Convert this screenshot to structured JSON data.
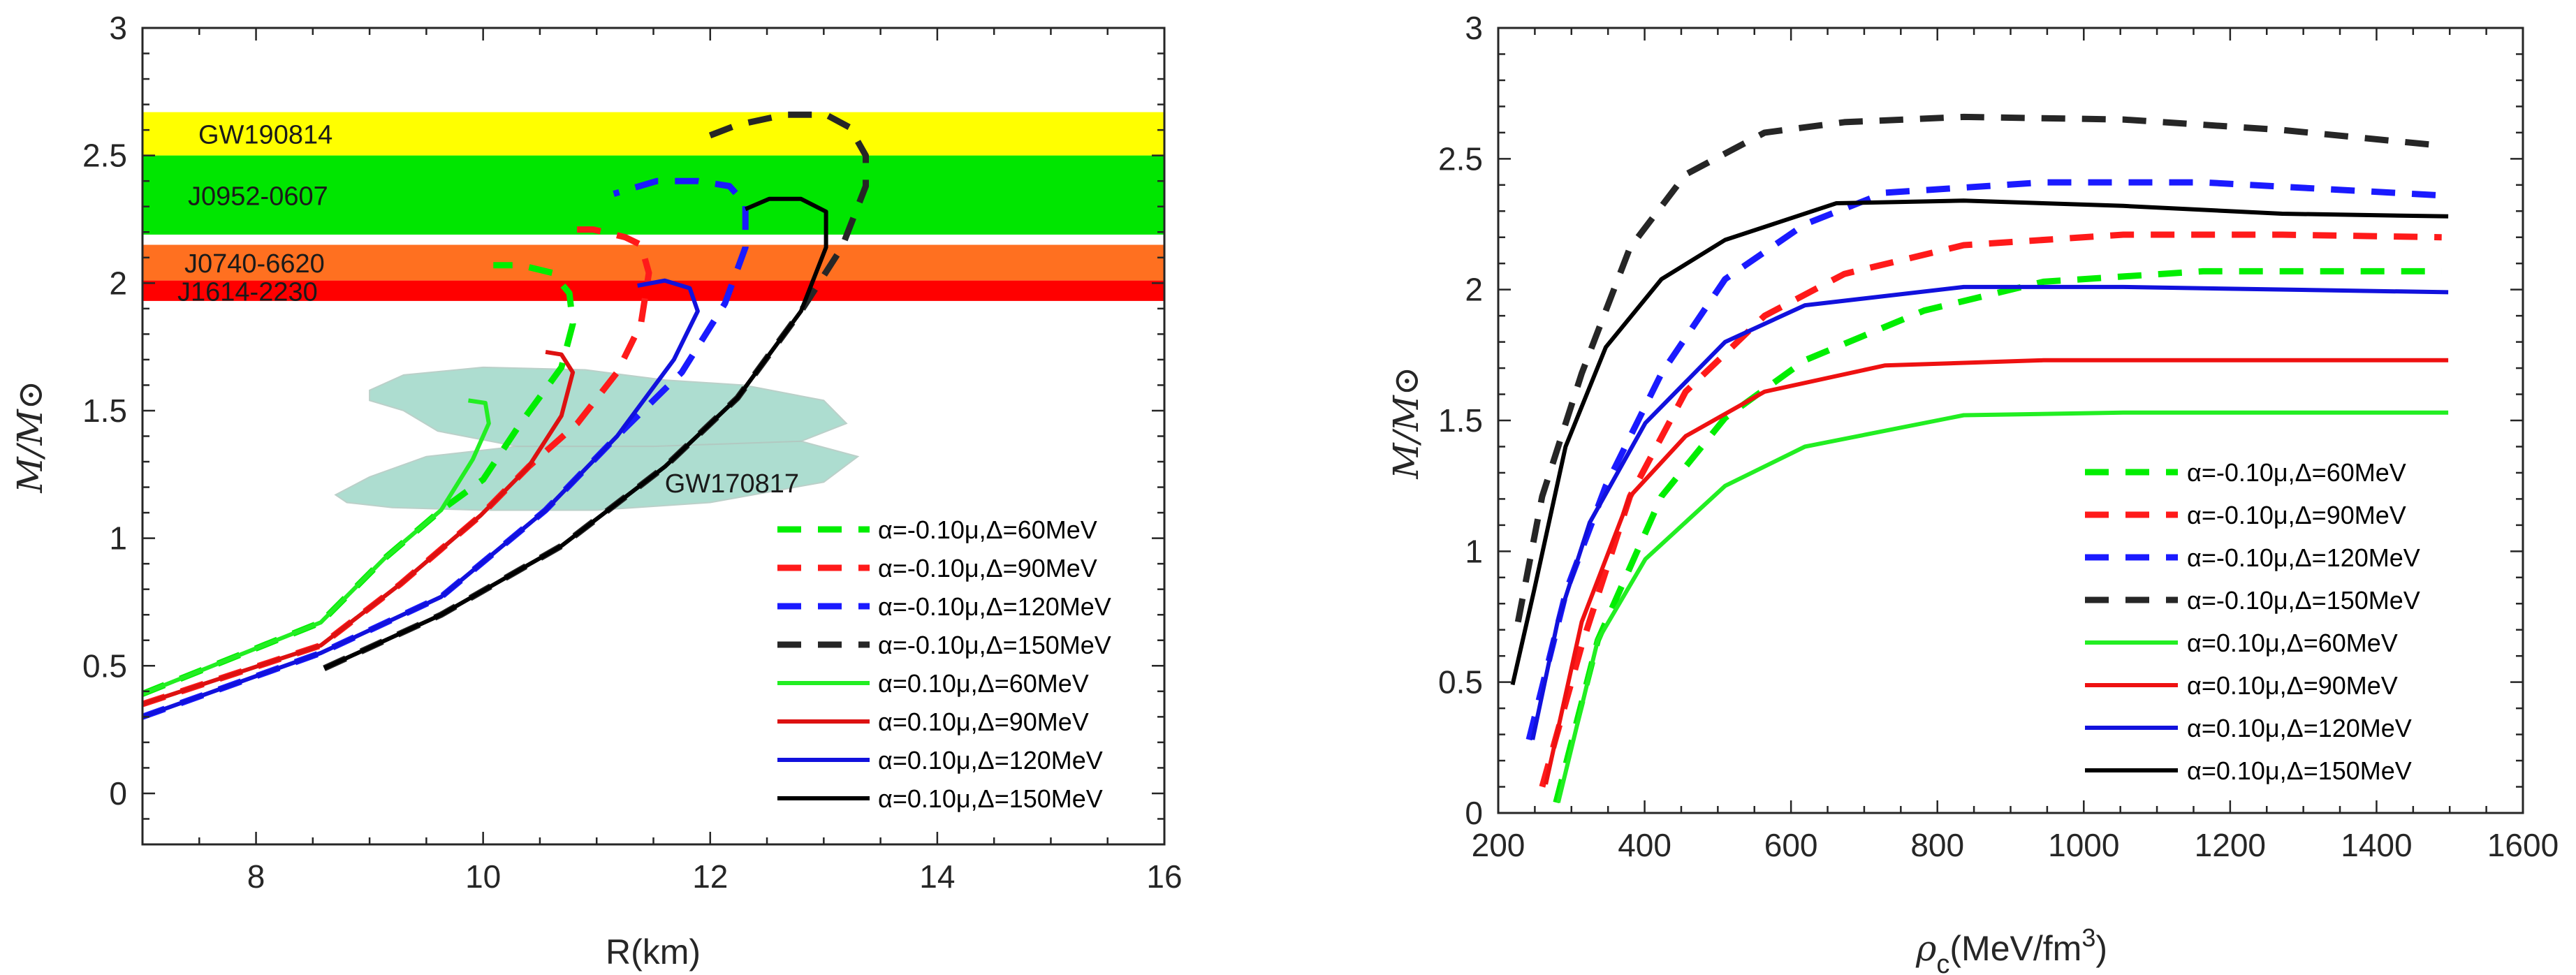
{
  "chart_data": [
    {
      "type": "line",
      "title": "",
      "xlabel": "R(km)",
      "ylabel": "M/M⊙",
      "xlim": [
        7,
        16
      ],
      "ylim": [
        -0.2,
        3
      ],
      "xticks": [
        "8",
        "10",
        "12",
        "14",
        "16"
      ],
      "xtick_values": [
        8,
        10,
        12,
        14,
        16
      ],
      "yticks": [
        "0",
        "0.5",
        "1",
        "1.5",
        "2",
        "2.5",
        "3"
      ],
      "ytick_values": [
        0,
        0.5,
        1,
        1.5,
        2,
        2.5,
        3
      ],
      "legend_position": "bottom-right",
      "bands": [
        {
          "label": "GW190814",
          "ymin": 2.5,
          "ymax": 2.67,
          "color": "#ffff00"
        },
        {
          "label": "J0952-0607",
          "ymin": 2.19,
          "ymax": 2.5,
          "color": "#00e600"
        },
        {
          "label": "J0740-6620",
          "ymin": 2.01,
          "ymax": 2.15,
          "color": "#ff7020"
        },
        {
          "label": "J1614-2230",
          "ymin": 1.93,
          "ymax": 2.01,
          "color": "#ff0000"
        }
      ],
      "region": {
        "label": "GW170817",
        "color": "#9fd8c8",
        "polygons": [
          [
            [
              9.0,
              1.58
            ],
            [
              9.3,
              1.64
            ],
            [
              10.0,
              1.67
            ],
            [
              10.9,
              1.66
            ],
            [
              11.6,
              1.62
            ],
            [
              12.3,
              1.6
            ],
            [
              13.0,
              1.54
            ],
            [
              13.2,
              1.45
            ],
            [
              12.8,
              1.38
            ],
            [
              11.5,
              1.36
            ],
            [
              10.3,
              1.36
            ],
            [
              9.6,
              1.42
            ],
            [
              9.3,
              1.5
            ],
            [
              9.0,
              1.54
            ]
          ],
          [
            [
              8.7,
              1.17
            ],
            [
              9.0,
              1.24
            ],
            [
              9.5,
              1.32
            ],
            [
              10.3,
              1.36
            ],
            [
              11.5,
              1.36
            ],
            [
              12.8,
              1.38
            ],
            [
              13.3,
              1.32
            ],
            [
              13.0,
              1.22
            ],
            [
              12.0,
              1.14
            ],
            [
              11.0,
              1.11
            ],
            [
              10.0,
              1.11
            ],
            [
              9.2,
              1.12
            ],
            [
              8.8,
              1.14
            ]
          ]
        ]
      },
      "series": [
        {
          "name": "α=-0.10μ,Δ=60MeV",
          "color": "#00ee00",
          "dash": true,
          "points": [
            [
              7.0,
              0.39
            ],
            [
              8.57,
              0.67
            ],
            [
              9.13,
              0.92
            ],
            [
              9.63,
              1.11
            ],
            [
              10.0,
              1.23
            ],
            [
              10.33,
              1.45
            ],
            [
              10.69,
              1.67
            ],
            [
              10.79,
              1.84
            ],
            [
              10.76,
              1.96
            ],
            [
              10.61,
              2.04
            ],
            [
              10.33,
              2.07
            ],
            [
              10.09,
              2.07
            ]
          ]
        },
        {
          "name": "α=-0.10μ,Δ=90MeV",
          "color": "#ff1a1a",
          "dash": true,
          "points": [
            [
              7.0,
              0.35
            ],
            [
              8.57,
              0.58
            ],
            [
              9.27,
              0.82
            ],
            [
              9.98,
              1.09
            ],
            [
              10.4,
              1.28
            ],
            [
              10.83,
              1.45
            ],
            [
              11.18,
              1.65
            ],
            [
              11.39,
              1.84
            ],
            [
              11.46,
              2.04
            ],
            [
              11.39,
              2.15
            ],
            [
              11.25,
              2.18
            ],
            [
              10.97,
              2.21
            ],
            [
              10.69,
              2.21
            ]
          ]
        },
        {
          "name": "α=-0.10μ,Δ=120MeV",
          "color": "#1a1aff",
          "dash": true,
          "points": [
            [
              7.0,
              0.3
            ],
            [
              8.57,
              0.55
            ],
            [
              9.63,
              0.77
            ],
            [
              10.55,
              1.11
            ],
            [
              11.18,
              1.4
            ],
            [
              11.75,
              1.65
            ],
            [
              12.13,
              1.92
            ],
            [
              12.31,
              2.14
            ],
            [
              12.31,
              2.31
            ],
            [
              12.17,
              2.38
            ],
            [
              11.89,
              2.4
            ],
            [
              11.53,
              2.4
            ],
            [
              11.15,
              2.35
            ]
          ]
        },
        {
          "name": "α=-0.10μ,Δ=150MeV",
          "color": "#262626",
          "dash": true,
          "points": [
            [
              8.6,
              0.49
            ],
            [
              9.63,
              0.7
            ],
            [
              10.69,
              0.97
            ],
            [
              11.6,
              1.28
            ],
            [
              12.24,
              1.55
            ],
            [
              12.8,
              1.89
            ],
            [
              13.16,
              2.14
            ],
            [
              13.37,
              2.38
            ],
            [
              13.37,
              2.5
            ],
            [
              13.23,
              2.61
            ],
            [
              13.02,
              2.66
            ],
            [
              12.66,
              2.66
            ],
            [
              12.24,
              2.62
            ],
            [
              11.89,
              2.56
            ]
          ]
        },
        {
          "name": "α=0.10μ,Δ=60MeV",
          "color": "#22ee22",
          "dash": false,
          "points": [
            [
              7.0,
              0.39
            ],
            [
              8.57,
              0.67
            ],
            [
              9.13,
              0.92
            ],
            [
              9.63,
              1.11
            ],
            [
              9.91,
              1.31
            ],
            [
              10.05,
              1.45
            ],
            [
              10.02,
              1.53
            ],
            [
              9.87,
              1.54
            ]
          ]
        },
        {
          "name": "α=0.10μ,Δ=90MeV",
          "color": "#dd1111",
          "dash": false,
          "points": [
            [
              7.0,
              0.35
            ],
            [
              8.57,
              0.58
            ],
            [
              9.27,
              0.82
            ],
            [
              9.98,
              1.09
            ],
            [
              10.4,
              1.28
            ],
            [
              10.69,
              1.48
            ],
            [
              10.79,
              1.65
            ],
            [
              10.69,
              1.72
            ],
            [
              10.55,
              1.73
            ]
          ]
        },
        {
          "name": "α=0.10μ,Δ=120MeV",
          "color": "#1111dd",
          "dash": false,
          "points": [
            [
              7.0,
              0.3
            ],
            [
              8.57,
              0.55
            ],
            [
              9.63,
              0.77
            ],
            [
              10.55,
              1.11
            ],
            [
              11.18,
              1.4
            ],
            [
              11.68,
              1.7
            ],
            [
              11.89,
              1.89
            ],
            [
              11.82,
              1.98
            ],
            [
              11.6,
              2.01
            ],
            [
              11.36,
              1.99
            ]
          ]
        },
        {
          "name": "α=0.10μ,Δ=150MeV",
          "color": "#000000",
          "dash": false,
          "points": [
            [
              8.6,
              0.49
            ],
            [
              9.63,
              0.7
            ],
            [
              10.69,
              0.97
            ],
            [
              11.6,
              1.28
            ],
            [
              12.24,
              1.55
            ],
            [
              12.8,
              1.89
            ],
            [
              13.02,
              2.14
            ],
            [
              13.02,
              2.28
            ],
            [
              12.8,
              2.33
            ],
            [
              12.52,
              2.33
            ],
            [
              12.31,
              2.29
            ]
          ]
        }
      ]
    },
    {
      "type": "line",
      "title": "",
      "xlabel": "ρc(MeV/fm3)",
      "xlabel_parts": {
        "main": "ρ",
        "sub": "c",
        "unit": "(MeV/fm",
        "sup": "3",
        "close": ")"
      },
      "ylabel": "M/M⊙",
      "xlim": [
        200,
        1600
      ],
      "ylim": [
        0,
        3
      ],
      "xticks": [
        "200",
        "400",
        "600",
        "800",
        "1000",
        "1200",
        "1400",
        "1600"
      ],
      "xtick_values": [
        200,
        400,
        600,
        800,
        1000,
        1200,
        1400,
        1600
      ],
      "yticks": [
        "0",
        "0.5",
        "1",
        "1.5",
        "2",
        "2.5",
        "3"
      ],
      "ytick_values": [
        0,
        0.5,
        1,
        1.5,
        2,
        2.5,
        3
      ],
      "legend_position": "bottom-right",
      "series": [
        {
          "name": "α=-0.10μ,Δ=60MeV",
          "color": "#00ee00",
          "dash": true,
          "points": [
            [
              279,
              0.04
            ],
            [
              336,
              0.66
            ],
            [
              423,
              1.21
            ],
            [
              510,
              1.51
            ],
            [
              619,
              1.73
            ],
            [
              782,
              1.92
            ],
            [
              945,
              2.03
            ],
            [
              1163,
              2.07
            ],
            [
              1489,
              2.07
            ]
          ]
        },
        {
          "name": "α=-0.10μ,Δ=90MeV",
          "color": "#ff1a1a",
          "dash": true,
          "points": [
            [
              260,
              0.1
            ],
            [
              314,
              0.64
            ],
            [
              380,
              1.21
            ],
            [
              456,
              1.61
            ],
            [
              564,
              1.9
            ],
            [
              673,
              2.06
            ],
            [
              836,
              2.17
            ],
            [
              1054,
              2.21
            ],
            [
              1271,
              2.21
            ],
            [
              1489,
              2.2
            ]
          ]
        },
        {
          "name": "α=-0.10μ,Δ=120MeV",
          "color": "#1a1aff",
          "dash": true,
          "points": [
            [
              242,
              0.28
            ],
            [
              293,
              0.85
            ],
            [
              347,
              1.25
            ],
            [
              423,
              1.68
            ],
            [
              510,
              2.04
            ],
            [
              619,
              2.25
            ],
            [
              728,
              2.37
            ],
            [
              945,
              2.41
            ],
            [
              1163,
              2.41
            ],
            [
              1489,
              2.36
            ]
          ]
        },
        {
          "name": "α=-0.10μ,Δ=150MeV",
          "color": "#262626",
          "dash": true,
          "points": [
            [
              227,
              0.73
            ],
            [
              260,
              1.21
            ],
            [
              314,
              1.68
            ],
            [
              380,
              2.16
            ],
            [
              456,
              2.44
            ],
            [
              564,
              2.6
            ],
            [
              673,
              2.64
            ],
            [
              836,
              2.66
            ],
            [
              1054,
              2.65
            ],
            [
              1271,
              2.61
            ],
            [
              1489,
              2.55
            ]
          ]
        },
        {
          "name": "α=0.10μ,Δ=60MeV",
          "color": "#22ee22",
          "dash": false,
          "points": [
            [
              282,
              0.04
            ],
            [
              336,
              0.66
            ],
            [
              401,
              0.97
            ],
            [
              510,
              1.25
            ],
            [
              619,
              1.4
            ],
            [
              836,
              1.52
            ],
            [
              1054,
              1.53
            ],
            [
              1498,
              1.53
            ]
          ]
        },
        {
          "name": "α=0.10μ,Δ=90MeV",
          "color": "#ee1111",
          "dash": false,
          "points": [
            [
              265,
              0.11
            ],
            [
              314,
              0.73
            ],
            [
              380,
              1.21
            ],
            [
              456,
              1.44
            ],
            [
              564,
              1.61
            ],
            [
              728,
              1.71
            ],
            [
              945,
              1.73
            ],
            [
              1498,
              1.73
            ]
          ]
        },
        {
          "name": "α=0.10μ,Δ=120MeV",
          "color": "#1111dd",
          "dash": false,
          "points": [
            [
              247,
              0.28
            ],
            [
              281,
              0.73
            ],
            [
              325,
              1.11
            ],
            [
              401,
              1.49
            ],
            [
              510,
              1.8
            ],
            [
              619,
              1.94
            ],
            [
              836,
              2.01
            ],
            [
              1054,
              2.01
            ],
            [
              1498,
              1.99
            ]
          ]
        },
        {
          "name": "α=0.10μ,Δ=150MeV",
          "color": "#000000",
          "dash": false,
          "points": [
            [
              219.6,
              0.49
            ],
            [
              249,
              0.85
            ],
            [
              292,
              1.4
            ],
            [
              347,
              1.78
            ],
            [
              423,
              2.04
            ],
            [
              510,
              2.19
            ],
            [
              662,
              2.33
            ],
            [
              836,
              2.34
            ],
            [
              1054,
              2.32
            ],
            [
              1271,
              2.29
            ],
            [
              1498,
              2.28
            ]
          ]
        }
      ]
    }
  ]
}
